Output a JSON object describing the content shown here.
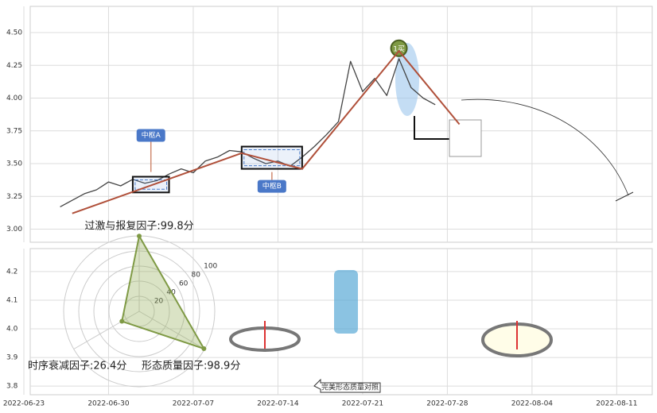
{
  "chart_data": [
    {
      "type": "line",
      "x": [
        "2022-06-26",
        "2022-06-27",
        "2022-06-28",
        "2022-06-29",
        "2022-06-30",
        "2022-07-01",
        "2022-07-02",
        "2022-07-03",
        "2022-07-04",
        "2022-07-05",
        "2022-07-06",
        "2022-07-07",
        "2022-07-08",
        "2022-07-09",
        "2022-07-10",
        "2022-07-11",
        "2022-07-12",
        "2022-07-13",
        "2022-07-14",
        "2022-07-15",
        "2022-07-16",
        "2022-07-17",
        "2022-07-18",
        "2022-07-19",
        "2022-07-20",
        "2022-07-21",
        "2022-07-22",
        "2022-07-23",
        "2022-07-24",
        "2022-07-25",
        "2022-07-26",
        "2022-07-27"
      ],
      "series": [
        {
          "color": "#444444",
          "values": [
            3.17,
            3.22,
            3.27,
            3.3,
            3.36,
            3.33,
            3.38,
            3.35,
            3.37,
            3.42,
            3.46,
            3.43,
            3.52,
            3.55,
            3.6,
            3.59,
            3.54,
            3.5,
            3.52,
            3.48,
            3.55,
            3.63,
            3.72,
            3.82,
            4.28,
            4.05,
            4.15,
            4.02,
            4.3,
            4.08,
            4.0,
            3.95
          ]
        }
      ],
      "xlim": [
        "2022-06-23",
        "2022-08-14"
      ],
      "xticks": [
        "2022-06-23",
        "2022-06-30",
        "2022-07-07",
        "2022-07-14",
        "2022-07-21",
        "2022-07-28",
        "2022-08-04",
        "2022-08-11"
      ],
      "ylim": [
        2.9,
        4.7
      ],
      "yticks": [
        {
          "value": 3,
          "label": "3.00"
        },
        {
          "value": 3.25,
          "label": "3.25"
        },
        {
          "value": 3.5,
          "label": "3.50"
        },
        {
          "value": 3.75,
          "label": "3.75"
        },
        {
          "value": 4,
          "label": "4.00"
        },
        {
          "value": 4.25,
          "label": "4.25"
        },
        {
          "value": 4.5,
          "label": "4.50"
        }
      ],
      "grid": true,
      "annotations": [
        {
          "label": "中枢A",
          "x": [
            "2022-07-02",
            "2022-07-05"
          ],
          "y": [
            3.28,
            3.4
          ]
        },
        {
          "label": "中枢B",
          "x": [
            "2022-07-11",
            "2022-07-16"
          ],
          "y": [
            3.46,
            3.63
          ]
        },
        {
          "label": "1买",
          "x": "2022-07-24",
          "y": 4.38
        }
      ]
    },
    {
      "type": "line",
      "x": [
        "2022-06-27",
        "2022-07-11",
        "2022-07-16",
        "2022-07-24",
        "2022-07-29"
      ],
      "values": [
        3.12,
        3.58,
        3.46,
        4.36,
        3.8
      ],
      "color": "#b0503a"
    },
    {
      "type": "radar",
      "values": [
        99.8,
        26.4,
        98.9
      ],
      "value_labels": [
        "过激与报复因子:99.8分",
        "时序衰减因子:26.4分",
        "形态质量因子:98.9分"
      ],
      "rlim": [
        0,
        100
      ],
      "rticks": [
        20,
        40,
        60,
        80,
        100
      ],
      "color": "#7f9a45"
    },
    {
      "type": "panel",
      "ylim": [
        3.77,
        4.28
      ],
      "yticks": [
        {
          "value": 3.8,
          "label": "3.8"
        },
        {
          "value": 3.9,
          "label": "3.9"
        },
        {
          "value": 4,
          "label": "4.0"
        },
        {
          "value": 4.1,
          "label": "4.1"
        },
        {
          "value": 4.2,
          "label": "4.2"
        }
      ],
      "grid": true,
      "annotation": "完美形态质量对照"
    }
  ]
}
